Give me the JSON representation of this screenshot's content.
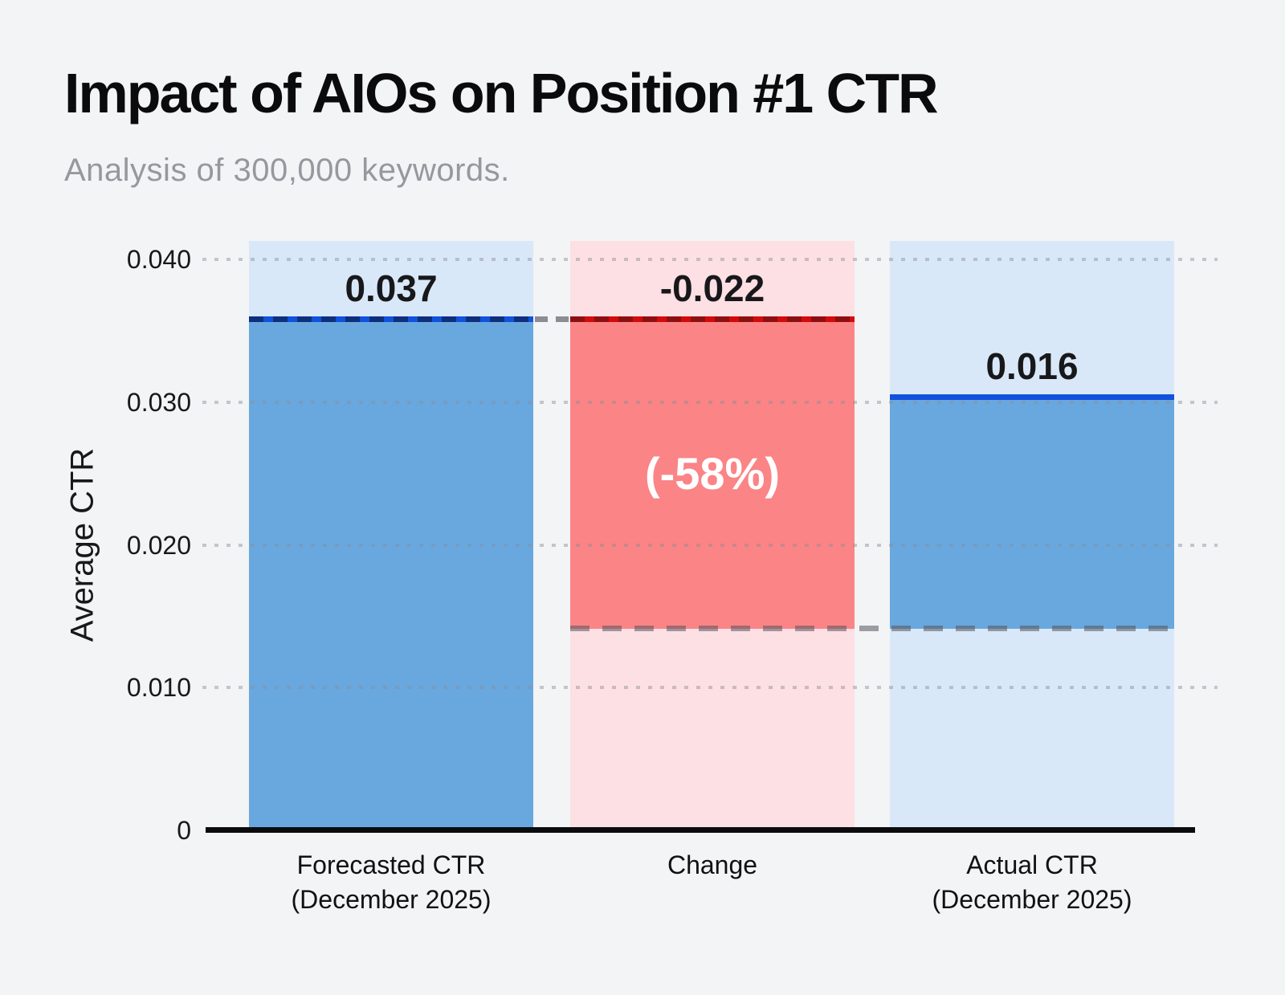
{
  "page": {
    "background": "#f3f4f6"
  },
  "header": {
    "title": "Impact of AIOs on Position #1 CTR",
    "subtitle": "Analysis of 300,000 keywords.",
    "title_color": "#0b0b0d",
    "subtitle_color": "#97979e"
  },
  "chart_data": {
    "type": "bar",
    "variant": "waterfall",
    "title": "Impact of AIOs on Position #1 CTR",
    "subtitle": "Analysis of 300,000 keywords.",
    "xlabel": "",
    "ylabel": "Average CTR",
    "ylim": [
      0,
      0.0413
    ],
    "grid": "dotted-horizontal",
    "legend": "none",
    "categories": [
      "Forecasted CTR (December 2025)",
      "Change",
      "Actual CTR (December 2025)"
    ],
    "values": [
      0.037,
      -0.022,
      0.016
    ],
    "percent_change_annotation": "(-58%)",
    "y_ticks": [
      {
        "label": "0.040",
        "value": 0.04
      },
      {
        "label": "0.030",
        "value": 0.03
      },
      {
        "label": "0.020",
        "value": 0.02
      },
      {
        "label": "0.010",
        "value": 0.01
      },
      {
        "label": "0",
        "value": 0
      }
    ],
    "bars": [
      {
        "id": "forecasted",
        "label_line1": "Forecasted CTR",
        "label_line2": "(December 2025)",
        "value": 0.037,
        "display_value": "0.037",
        "annotation": "",
        "drawn_from": 0,
        "drawn_to": 0.0358,
        "tint_color": "#d9e8f8",
        "solid_color": "#68a8de",
        "line_color": "#1152dc",
        "line_dash_color": "#0e2f7d"
      },
      {
        "id": "change",
        "label_line1": "Change",
        "label_line2": "",
        "value": -0.022,
        "display_value": "-0.022",
        "annotation": "(-58%)",
        "drawn_from": 0.0141,
        "drawn_to": 0.0358,
        "tint_color": "#fde0e3",
        "solid_color": "#fb8486",
        "line_color": "#d40a0a",
        "line_dash_color": "#8c1011"
      },
      {
        "id": "actual",
        "label_line1": "Actual CTR",
        "label_line2": "(December 2025)",
        "value": 0.016,
        "display_value": "0.016",
        "annotation": "",
        "drawn_from": 0.0141,
        "drawn_to": 0.0303,
        "tint_color": "#d9e8f8",
        "solid_color": "#68a8de",
        "line_color": "#1152dc",
        "line_dash_color": ""
      }
    ],
    "connectors": [
      {
        "level": 0.0358,
        "span": "gap-between-bar-1-and-2",
        "style": "gray-dashed"
      },
      {
        "level": 0.0141,
        "span": "across-bars-2-and-3",
        "style": "gray-dashed"
      }
    ],
    "colors": {
      "background": "#f3f4f6",
      "axis": "#0b0b0d",
      "grid_dot": "#8c8c96",
      "connector_dash": "#55555c",
      "tick_text": "#18181b",
      "x_label_text": "#111114",
      "annotation_text": "#ffffff"
    }
  }
}
